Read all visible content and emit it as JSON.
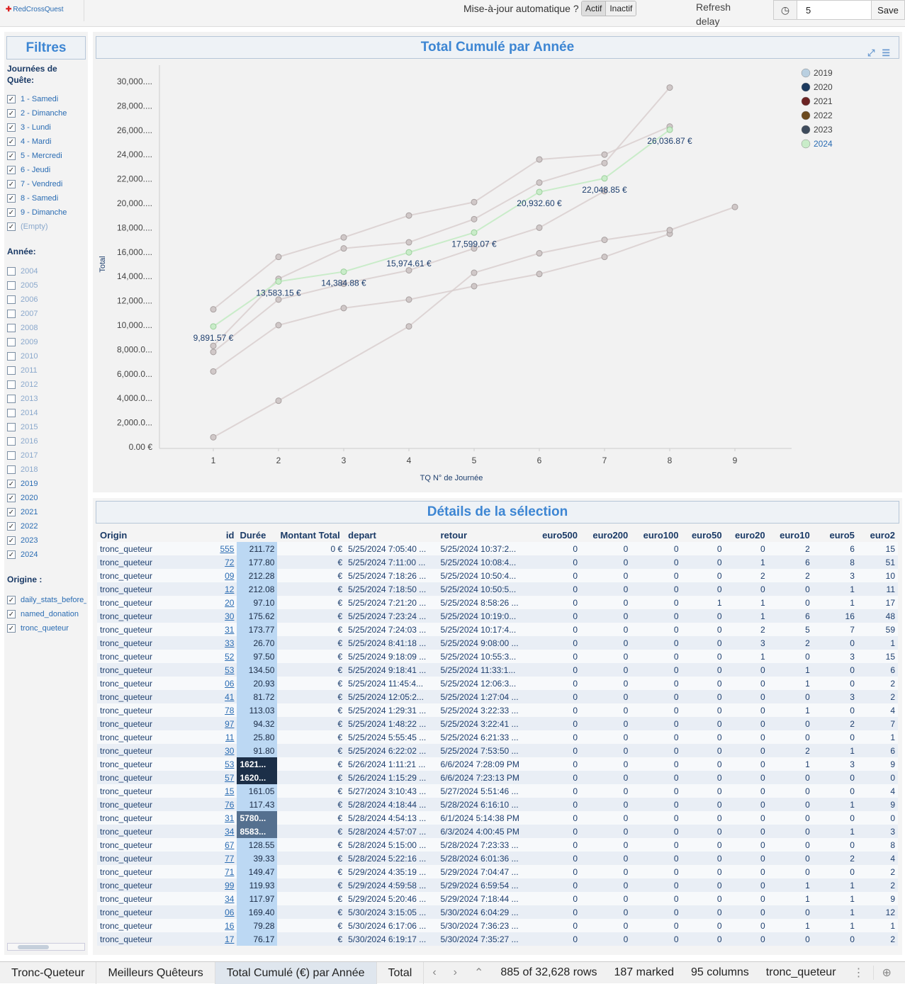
{
  "header": {
    "logo_text": "RedCrossQuest",
    "auto_update_label": "Mise-à-jour automatique ?",
    "actif_label": "Actif",
    "inactif_label": "Inactif",
    "refresh_label": "Refresh delay",
    "delay_value": "5",
    "save_label": "Save"
  },
  "filters": {
    "title": "Filtres",
    "journees_title": "Journées de Quête:",
    "journees": [
      {
        "label": "1 - Samedi",
        "checked": true
      },
      {
        "label": "2 - Dimanche",
        "checked": true
      },
      {
        "label": "3 - Lundi",
        "checked": true
      },
      {
        "label": "4 - Mardi",
        "checked": true
      },
      {
        "label": "5 - Mercredi",
        "checked": true
      },
      {
        "label": "6 - Jeudi",
        "checked": true
      },
      {
        "label": "7 - Vendredi",
        "checked": true
      },
      {
        "label": "8 - Samedi",
        "checked": true
      },
      {
        "label": "9 - Dimanche",
        "checked": true
      },
      {
        "label": "(Empty)",
        "checked": true
      }
    ],
    "annee_title": "Année:",
    "annees": [
      {
        "label": "2004",
        "checked": false
      },
      {
        "label": "2005",
        "checked": false
      },
      {
        "label": "2006",
        "checked": false
      },
      {
        "label": "2007",
        "checked": false
      },
      {
        "label": "2008",
        "checked": false
      },
      {
        "label": "2009",
        "checked": false
      },
      {
        "label": "2010",
        "checked": false
      },
      {
        "label": "2011",
        "checked": false
      },
      {
        "label": "2012",
        "checked": false
      },
      {
        "label": "2013",
        "checked": false
      },
      {
        "label": "2014",
        "checked": false
      },
      {
        "label": "2015",
        "checked": false
      },
      {
        "label": "2016",
        "checked": false
      },
      {
        "label": "2017",
        "checked": false
      },
      {
        "label": "2018",
        "checked": false
      },
      {
        "label": "2019",
        "checked": true
      },
      {
        "label": "2020",
        "checked": true
      },
      {
        "label": "2021",
        "checked": true
      },
      {
        "label": "2022",
        "checked": true
      },
      {
        "label": "2023",
        "checked": true
      },
      {
        "label": "2024",
        "checked": true
      }
    ],
    "origine_title": "Origine :",
    "origines": [
      {
        "label": "daily_stats_before_",
        "checked": true
      },
      {
        "label": "named_donation",
        "checked": true
      },
      {
        "label": "tronc_queteur",
        "checked": true
      }
    ]
  },
  "chart_panel": {
    "title": "Total Cumulé par Année"
  },
  "chart_data": {
    "type": "line",
    "title": "Total Cumulé par Année",
    "xlabel": "TQ N° de Journée",
    "ylabel": "Total",
    "x": [
      1,
      2,
      3,
      4,
      5,
      6,
      7,
      8,
      9
    ],
    "ylim": [
      0,
      30000
    ],
    "yticks": [
      "0.00 €",
      "2,000.0...",
      "4,000.0...",
      "6,000.0...",
      "8,000.0...",
      "10,000....",
      "12,000....",
      "14,000....",
      "16,000....",
      "18,000....",
      "20,000....",
      "22,000....",
      "24,000....",
      "26,000....",
      "28,000....",
      "30,000...."
    ],
    "legend_position": "top-right",
    "series": [
      {
        "name": "2019",
        "color": "#b9cfe0",
        "values": [
          6200,
          10000,
          11400,
          12100,
          13200,
          14200,
          15600,
          17500,
          null
        ]
      },
      {
        "name": "2020",
        "color": "#1c3a5e",
        "values": [
          7800,
          12100,
          13400,
          14500,
          16300,
          18000,
          21000,
          null,
          null
        ]
      },
      {
        "name": "2021",
        "color": "#6b2323",
        "values": [
          8300,
          13800,
          16300,
          16800,
          18700,
          21700,
          23300,
          29500,
          null
        ]
      },
      {
        "name": "2022",
        "color": "#6b4a1e",
        "values": [
          11300,
          15600,
          17200,
          19000,
          20100,
          23600,
          24000,
          26300,
          null
        ]
      },
      {
        "name": "2023",
        "color": "#3e4b5c",
        "values": [
          800,
          3800,
          null,
          9900,
          14300,
          15900,
          17000,
          17800,
          19700
        ]
      },
      {
        "name": "2024",
        "color": "#c9ecc9",
        "values": [
          9891.57,
          13583.15,
          14384.88,
          15974.61,
          17599.07,
          20932.6,
          22048.85,
          26036.87,
          null
        ]
      }
    ],
    "data_labels": [
      "9,891.57 €",
      "13,583.15 €",
      "14,384.88 €",
      "15,974.61 €",
      "17,599.07 €",
      "20,932.60 €",
      "22,048.85 €",
      "26,036.87 €"
    ]
  },
  "table_panel": {
    "title": "Détails de la sélection",
    "columns": [
      "Origin",
      "id",
      "Durée",
      "Montant Total",
      "depart",
      "retour",
      "euro500",
      "euro200",
      "euro100",
      "euro50",
      "euro20",
      "euro10",
      "euro5",
      "euro2"
    ],
    "rows": [
      [
        "tronc_queteur",
        "555",
        "211.72",
        "0 €",
        "5/25/2024 7:05:40 ...",
        "5/25/2024 10:37:2...",
        "0",
        "0",
        "0",
        "0",
        "0",
        "2",
        "6",
        "15"
      ],
      [
        "tronc_queteur",
        "72",
        "177.80",
        "€",
        "5/25/2024 7:11:00 ...",
        "5/25/2024 10:08:4...",
        "0",
        "0",
        "0",
        "0",
        "1",
        "6",
        "8",
        "51"
      ],
      [
        "tronc_queteur",
        "09",
        "212.28",
        "€",
        "5/25/2024 7:18:26 ...",
        "5/25/2024 10:50:4...",
        "0",
        "0",
        "0",
        "0",
        "2",
        "2",
        "3",
        "10"
      ],
      [
        "tronc_queteur",
        "12",
        "212.08",
        "€",
        "5/25/2024 7:18:50 ...",
        "5/25/2024 10:50:5...",
        "0",
        "0",
        "0",
        "0",
        "0",
        "0",
        "1",
        "11"
      ],
      [
        "tronc_queteur",
        "20",
        "97.10",
        "€",
        "5/25/2024 7:21:20 ...",
        "5/25/2024 8:58:26 ...",
        "0",
        "0",
        "0",
        "1",
        "1",
        "0",
        "1",
        "17"
      ],
      [
        "tronc_queteur",
        "30",
        "175.62",
        "€",
        "5/25/2024 7:23:24 ...",
        "5/25/2024 10:19:0...",
        "0",
        "0",
        "0",
        "0",
        "1",
        "6",
        "16",
        "48"
      ],
      [
        "tronc_queteur",
        "31",
        "173.77",
        "€",
        "5/25/2024 7:24:03 ...",
        "5/25/2024 10:17:4...",
        "0",
        "0",
        "0",
        "0",
        "2",
        "5",
        "7",
        "59"
      ],
      [
        "tronc_queteur",
        "33",
        "26.70",
        "€",
        "5/25/2024 8:41:18 ...",
        "5/25/2024 9:08:00 ...",
        "0",
        "0",
        "0",
        "0",
        "3",
        "2",
        "0",
        "1"
      ],
      [
        "tronc_queteur",
        "52",
        "97.50",
        "€",
        "5/25/2024 9:18:09 ...",
        "5/25/2024 10:55:3...",
        "0",
        "0",
        "0",
        "0",
        "1",
        "0",
        "3",
        "15"
      ],
      [
        "tronc_queteur",
        "53",
        "134.50",
        "€",
        "5/25/2024 9:18:41 ...",
        "5/25/2024 11:33:1...",
        "0",
        "0",
        "0",
        "0",
        "0",
        "1",
        "0",
        "6"
      ],
      [
        "tronc_queteur",
        "06",
        "20.93",
        "€",
        "5/25/2024 11:45:4...",
        "5/25/2024 12:06:3...",
        "0",
        "0",
        "0",
        "0",
        "0",
        "1",
        "0",
        "2"
      ],
      [
        "tronc_queteur",
        "41",
        "81.72",
        "€",
        "5/25/2024 12:05:2...",
        "5/25/2024 1:27:04 ...",
        "0",
        "0",
        "0",
        "0",
        "0",
        "0",
        "3",
        "2"
      ],
      [
        "tronc_queteur",
        "78",
        "113.03",
        "€",
        "5/25/2024 1:29:31 ...",
        "5/25/2024 3:22:33 ...",
        "0",
        "0",
        "0",
        "0",
        "0",
        "1",
        "0",
        "4"
      ],
      [
        "tronc_queteur",
        "97",
        "94.32",
        "€",
        "5/25/2024 1:48:22 ...",
        "5/25/2024 3:22:41 ...",
        "0",
        "0",
        "0",
        "0",
        "0",
        "0",
        "2",
        "7"
      ],
      [
        "tronc_queteur",
        "11",
        "25.80",
        "€",
        "5/25/2024 5:55:45 ...",
        "5/25/2024 6:21:33 ...",
        "0",
        "0",
        "0",
        "0",
        "0",
        "0",
        "0",
        "1"
      ],
      [
        "tronc_queteur",
        "30",
        "91.80",
        "€",
        "5/25/2024 6:22:02 ...",
        "5/25/2024 7:53:50 ...",
        "0",
        "0",
        "0",
        "0",
        "0",
        "2",
        "1",
        "6"
      ],
      [
        "tronc_queteur",
        "53",
        "1621...",
        "€",
        "5/26/2024 1:11:21 ...",
        "6/6/2024 7:28:09 PM",
        "0",
        "0",
        "0",
        "0",
        "0",
        "1",
        "3",
        "9"
      ],
      [
        "tronc_queteur",
        "57",
        "1620...",
        "€",
        "5/26/2024 1:15:29 ...",
        "6/6/2024 7:23:13 PM",
        "0",
        "0",
        "0",
        "0",
        "0",
        "0",
        "0",
        "0"
      ],
      [
        "tronc_queteur",
        "15",
        "161.05",
        "€",
        "5/27/2024 3:10:43 ...",
        "5/27/2024 5:51:46 ...",
        "0",
        "0",
        "0",
        "0",
        "0",
        "0",
        "0",
        "4"
      ],
      [
        "tronc_queteur",
        "76",
        "117.43",
        "€",
        "5/28/2024 4:18:44 ...",
        "5/28/2024 6:16:10 ...",
        "0",
        "0",
        "0",
        "0",
        "0",
        "0",
        "1",
        "9"
      ],
      [
        "tronc_queteur",
        "31",
        "5780...",
        "€",
        "5/28/2024 4:54:13 ...",
        "6/1/2024 5:14:38 PM",
        "0",
        "0",
        "0",
        "0",
        "0",
        "0",
        "0",
        "0"
      ],
      [
        "tronc_queteur",
        "34",
        "8583...",
        "€",
        "5/28/2024 4:57:07 ...",
        "6/3/2024 4:00:45 PM",
        "0",
        "0",
        "0",
        "0",
        "0",
        "0",
        "1",
        "3"
      ],
      [
        "tronc_queteur",
        "67",
        "128.55",
        "€",
        "5/28/2024 5:15:00 ...",
        "5/28/2024 7:23:33 ...",
        "0",
        "0",
        "0",
        "0",
        "0",
        "0",
        "0",
        "8"
      ],
      [
        "tronc_queteur",
        "77",
        "39.33",
        "€",
        "5/28/2024 5:22:16 ...",
        "5/28/2024 6:01:36 ...",
        "0",
        "0",
        "0",
        "0",
        "0",
        "0",
        "2",
        "4"
      ],
      [
        "tronc_queteur",
        "71",
        "149.47",
        "€",
        "5/29/2024 4:35:19 ...",
        "5/29/2024 7:04:47 ...",
        "0",
        "0",
        "0",
        "0",
        "0",
        "0",
        "0",
        "2"
      ],
      [
        "tronc_queteur",
        "99",
        "119.93",
        "€",
        "5/29/2024 4:59:58 ...",
        "5/29/2024 6:59:54 ...",
        "0",
        "0",
        "0",
        "0",
        "0",
        "1",
        "1",
        "2"
      ],
      [
        "tronc_queteur",
        "34",
        "117.97",
        "€",
        "5/29/2024 5:20:46 ...",
        "5/29/2024 7:18:44 ...",
        "0",
        "0",
        "0",
        "0",
        "0",
        "1",
        "1",
        "9"
      ],
      [
        "tronc_queteur",
        "06",
        "169.40",
        "€",
        "5/30/2024 3:15:05 ...",
        "5/30/2024 6:04:29 ...",
        "0",
        "0",
        "0",
        "0",
        "0",
        "0",
        "1",
        "12"
      ],
      [
        "tronc_queteur",
        "16",
        "79.28",
        "€",
        "5/30/2024 6:17:06 ...",
        "5/30/2024 7:36:23 ...",
        "0",
        "0",
        "0",
        "0",
        "0",
        "1",
        "1",
        "1"
      ],
      [
        "tronc_queteur",
        "17",
        "76.17",
        "€",
        "5/30/2024 6:19:17 ...",
        "5/30/2024 7:35:27 ...",
        "0",
        "0",
        "0",
        "0",
        "0",
        "0",
        "0",
        "2"
      ]
    ]
  },
  "statusbar": {
    "tabs": [
      "Tronc-Queteur",
      "Meilleurs Quêteurs",
      "Total Cumulé (€) par Année",
      "Total"
    ],
    "active_tab": 2,
    "rows_text": "885 of 32,628 rows",
    "marked_text": "187 marked",
    "columns_text": "95 columns",
    "table_name": "tronc_queteur"
  }
}
